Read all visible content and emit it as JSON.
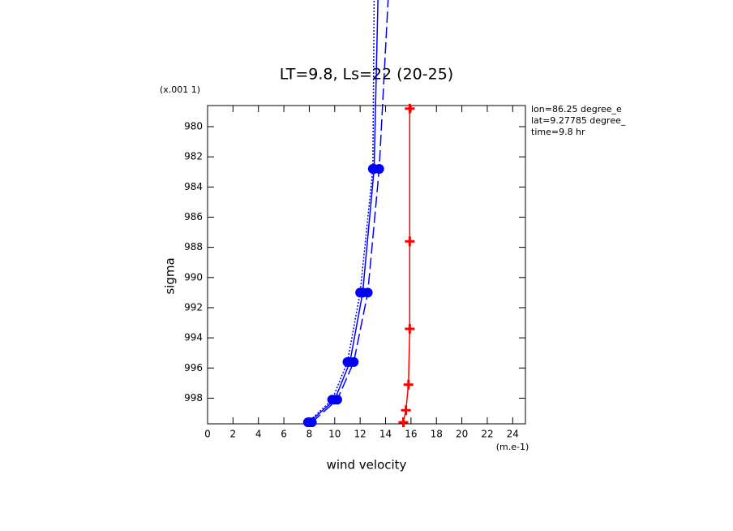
{
  "chart_data": {
    "type": "line",
    "title": "LT=9.8, Ls=22 (20-25)",
    "x_label": "wind velocity",
    "x_units": "(m.e-1)",
    "y_label": "sigma",
    "y_units": "(x.001 1)",
    "annotations": [
      "lon=86.25 degree_e",
      "lat=9.27785 degree_",
      "time=9.8 hr"
    ],
    "xlim": [
      0,
      25
    ],
    "xticks": [
      0,
      2,
      4,
      6,
      8,
      10,
      12,
      14,
      16,
      18,
      20,
      22,
      24
    ],
    "ylim": [
      999.7,
      978.6
    ],
    "yticks": [
      980,
      982,
      984,
      986,
      988,
      990,
      992,
      994,
      996,
      998
    ],
    "y_inverted": true,
    "series": [
      {
        "color": "#0000ff",
        "dash": "solid",
        "marker": "circle",
        "x": [
          8.0,
          10.0,
          11.2,
          12.2,
          13.1,
          13.4
        ],
        "y": [
          999.6,
          998.1,
          995.6,
          991.0,
          982.8,
          971.6
        ]
      },
      {
        "color": "#0000ff",
        "dash": "dashed",
        "marker": "circle",
        "x": [
          8.2,
          10.2,
          11.5,
          12.6,
          13.5,
          14.2
        ],
        "y": [
          999.6,
          998.1,
          995.6,
          991.0,
          982.8,
          971.6
        ]
      },
      {
        "color": "#0000ff",
        "dash": "dotted",
        "marker": "circle",
        "x": [
          7.9,
          9.8,
          11.0,
          12.0,
          13.0,
          13.1
        ],
        "y": [
          999.6,
          998.1,
          995.6,
          991.0,
          982.8,
          971.6
        ]
      },
      {
        "color": "#ff0000",
        "dash": "solid",
        "marker": "plus",
        "x": [
          15.9,
          15.9,
          15.9,
          15.8,
          15.6,
          15.4
        ],
        "y": [
          978.8,
          987.6,
          993.4,
          997.1,
          998.8,
          999.6
        ]
      }
    ]
  }
}
